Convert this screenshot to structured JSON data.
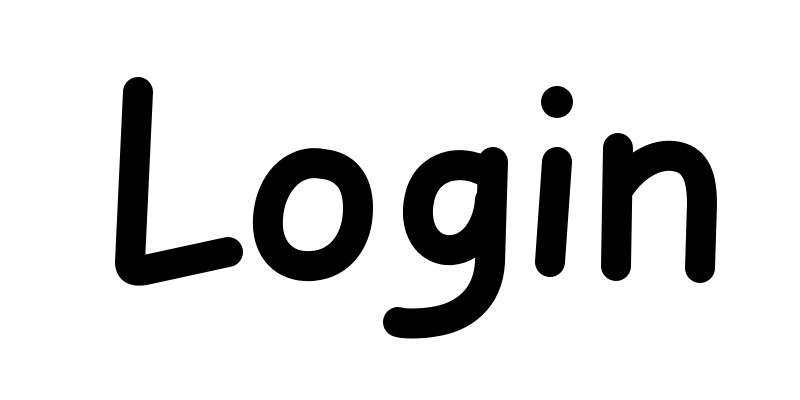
{
  "label": {
    "text": "Login"
  },
  "colors": {
    "background": "#ffffff",
    "ink": "#000000"
  }
}
